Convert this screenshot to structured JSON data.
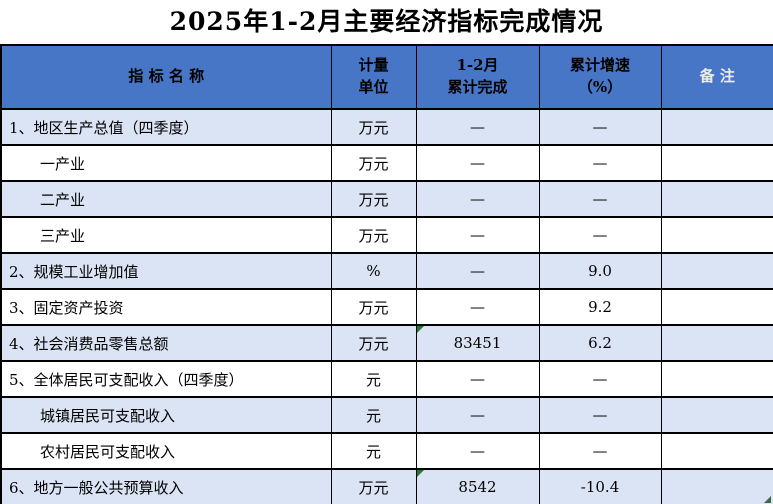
{
  "title": "2025年1-2月主要经济指标完成情况",
  "colors": {
    "header_bg": "#4776c6",
    "row_alt_bg": "#dbe4f4",
    "border": "#000000",
    "marker_green": "#1e7a2e",
    "corner_color": "#3c6b46",
    "header_text": "#000000",
    "note_header_text": "#ececec"
  },
  "table": {
    "columns": [
      {
        "label": "指  标  名  称"
      },
      {
        "label": "计量\n单位"
      },
      {
        "label": "1-2月\n累计完成"
      },
      {
        "label": "累计增速\n（%）"
      },
      {
        "label": "备  注"
      }
    ],
    "rows": [
      {
        "name": "1、地区生产总值（四季度）",
        "indent": false,
        "unit": "万元",
        "completed": "—",
        "growth": "—",
        "note": "",
        "shaded": true,
        "marker": false
      },
      {
        "name": "一产业",
        "indent": true,
        "unit": "万元",
        "completed": "—",
        "growth": "—",
        "note": "",
        "shaded": false,
        "marker": false
      },
      {
        "name": "二产业",
        "indent": true,
        "unit": "万元",
        "completed": "—",
        "growth": "—",
        "note": "",
        "shaded": true,
        "marker": false
      },
      {
        "name": "三产业",
        "indent": true,
        "unit": "万元",
        "completed": "—",
        "growth": "—",
        "note": "",
        "shaded": false,
        "marker": false
      },
      {
        "name": "2、规模工业增加值",
        "indent": false,
        "unit": "%",
        "completed": "—",
        "growth": "9.0",
        "note": "",
        "shaded": true,
        "marker": false
      },
      {
        "name": "3、固定资产投资",
        "indent": false,
        "unit": "万元",
        "completed": "—",
        "growth": "9.2",
        "note": "",
        "shaded": false,
        "marker": false
      },
      {
        "name": "4、社会消费品零售总额",
        "indent": false,
        "unit": "万元",
        "completed": "83451",
        "growth": "6.2",
        "note": "",
        "shaded": true,
        "marker": true
      },
      {
        "name": "5、全体居民可支配收入（四季度）",
        "indent": false,
        "unit": "元",
        "completed": "—",
        "growth": "—",
        "note": "",
        "shaded": false,
        "marker": false
      },
      {
        "name": "城镇居民可支配收入",
        "indent": true,
        "unit": "元",
        "completed": "—",
        "growth": "—",
        "note": "",
        "shaded": true,
        "marker": false
      },
      {
        "name": "农村居民可支配收入",
        "indent": true,
        "unit": "元",
        "completed": "—",
        "growth": "—",
        "note": "",
        "shaded": false,
        "marker": false
      },
      {
        "name": "6、地方一般公共预算收入",
        "indent": false,
        "unit": "万元",
        "completed": "8542",
        "growth": "-10.4",
        "note": "",
        "shaded": true,
        "marker": true
      }
    ]
  }
}
